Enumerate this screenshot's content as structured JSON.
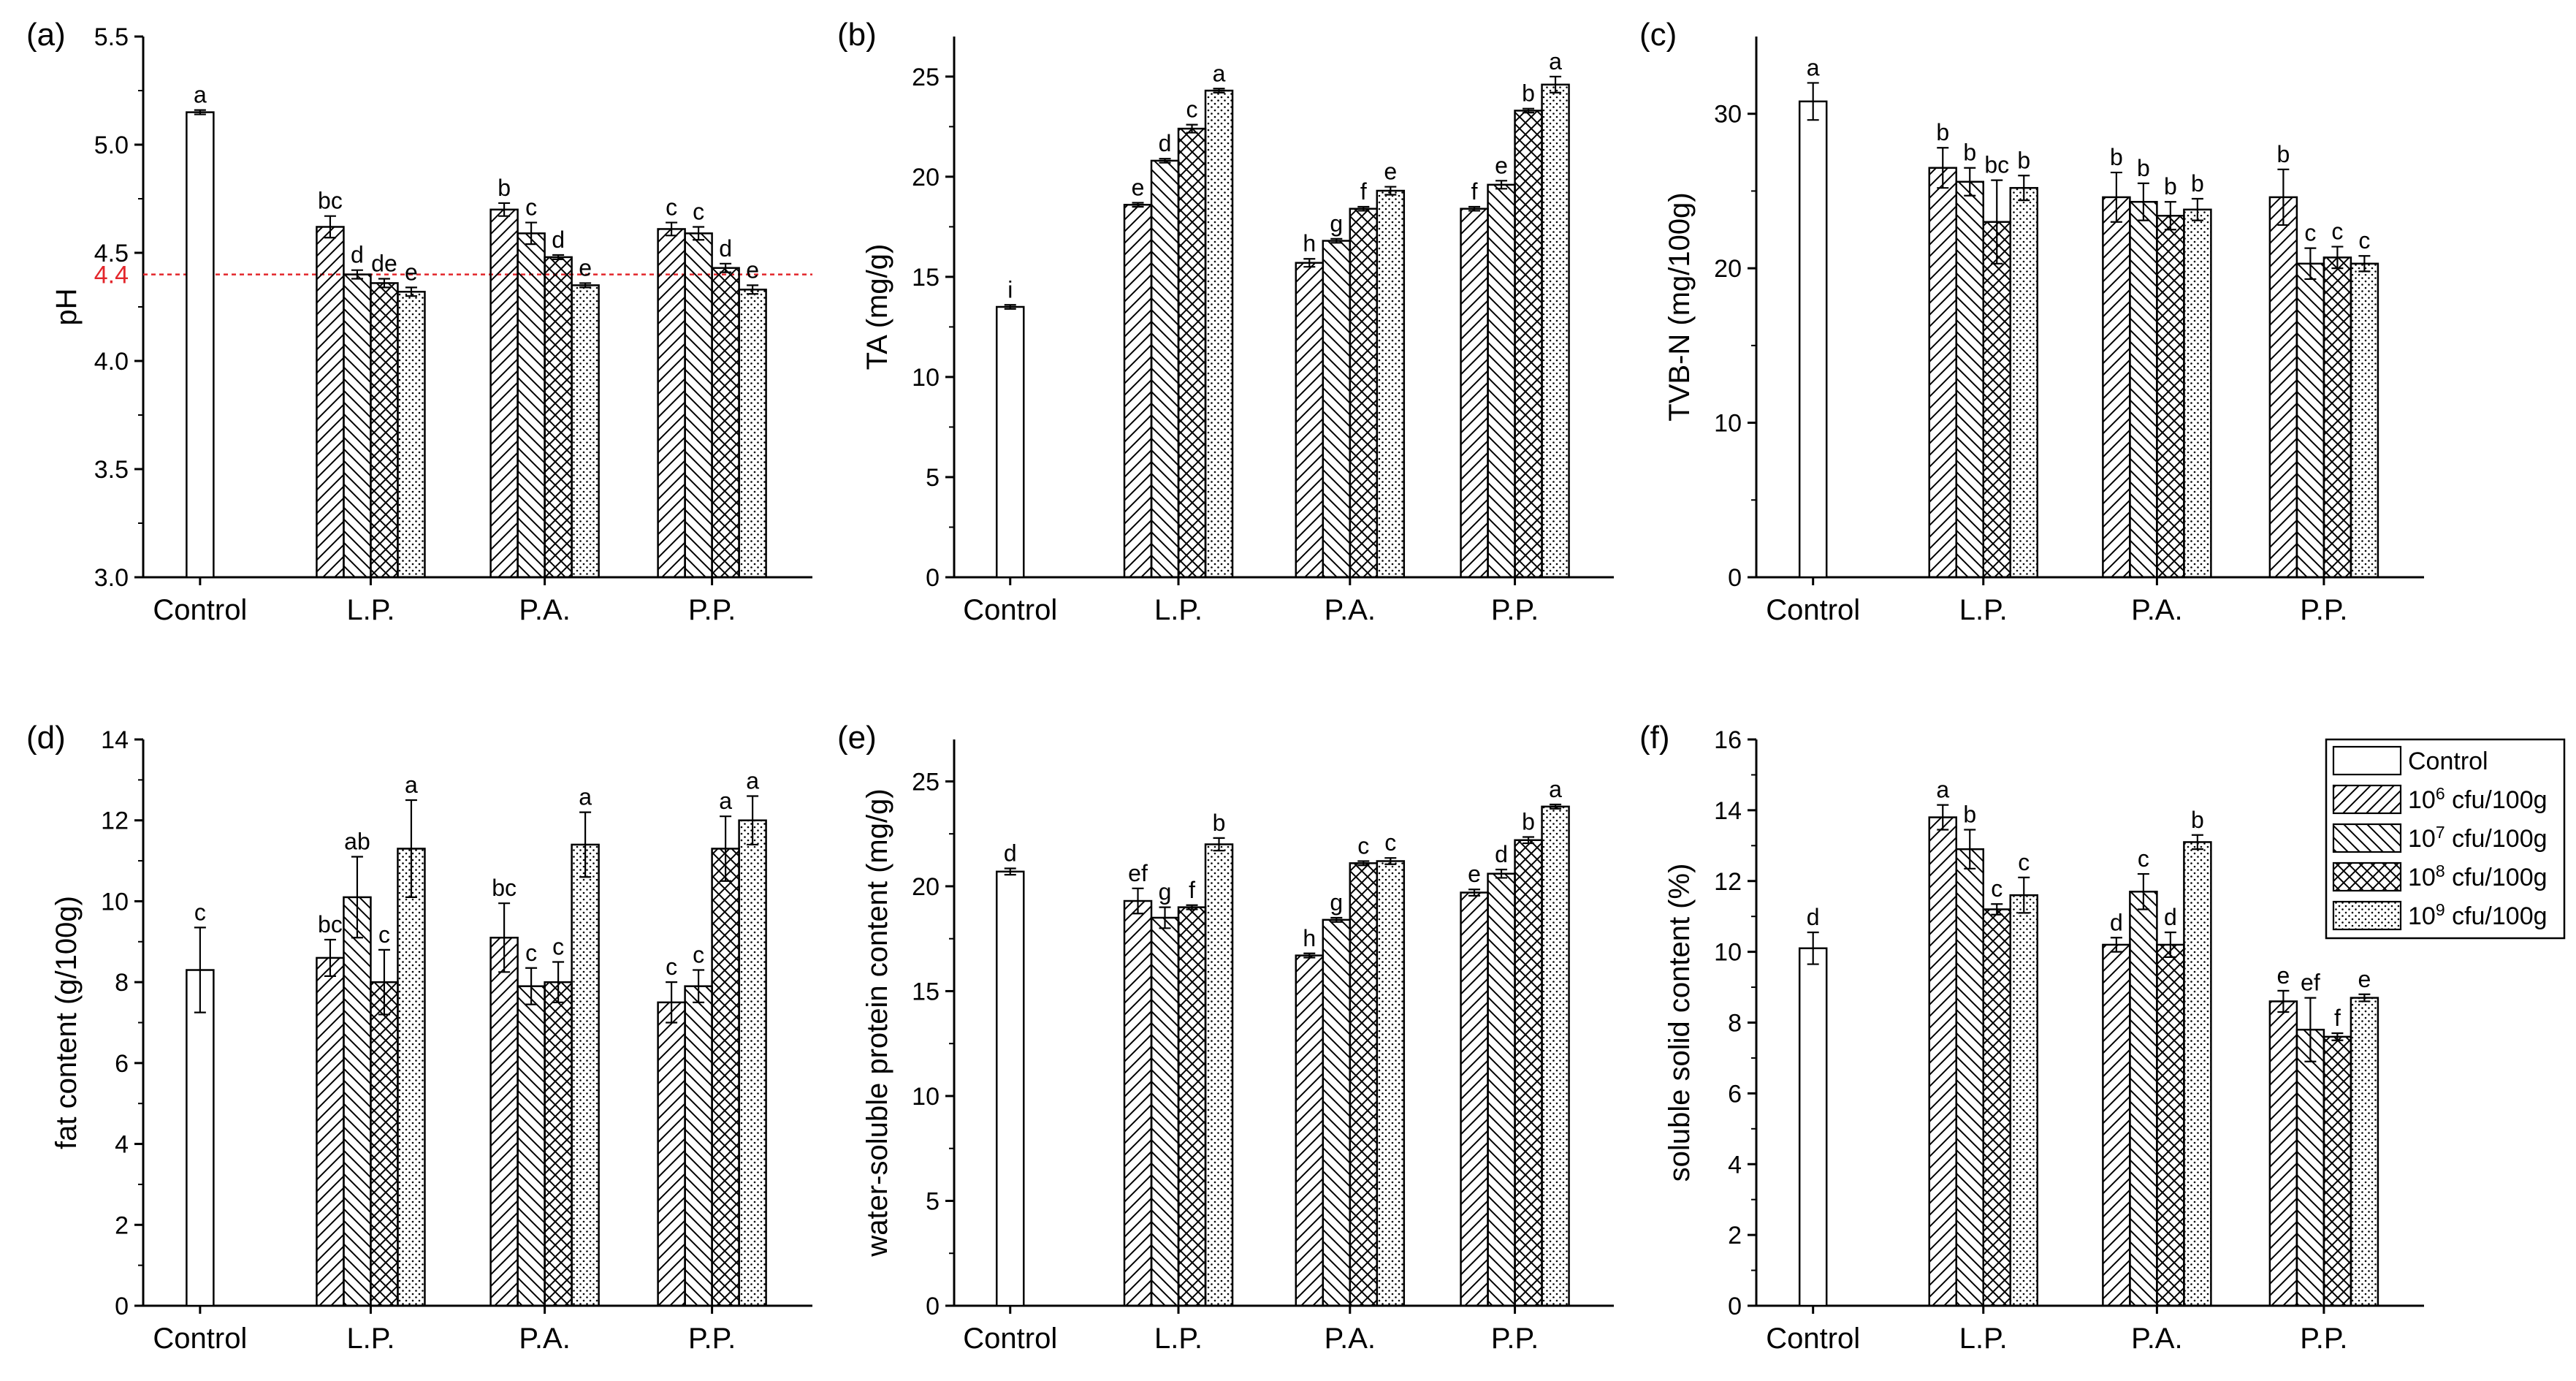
{
  "figure": {
    "groups": [
      "Control",
      "L.P.",
      "P.A.",
      "P.P."
    ],
    "legend": {
      "entries": [
        {
          "label": "Control",
          "pattern": "none"
        },
        {
          "label_base": "10",
          "label_exp": "6",
          "label_unit": " cfu/100g",
          "pattern": "diag-right"
        },
        {
          "label_base": "10",
          "label_exp": "7",
          "label_unit": " cfu/100g",
          "pattern": "diag-left"
        },
        {
          "label_base": "10",
          "label_exp": "8",
          "label_unit": " cfu/100g",
          "pattern": "crosshatch"
        },
        {
          "label_base": "10",
          "label_exp": "9",
          "label_unit": " cfu/100g",
          "pattern": "dots"
        }
      ]
    }
  },
  "chart_data": [
    {
      "panel": "(a)",
      "type": "bar",
      "ylabel": "pH",
      "ylim": [
        3.0,
        5.5
      ],
      "yticks": [
        3.0,
        3.5,
        4.0,
        4.5,
        5.0,
        5.5
      ],
      "ytick_decimals": 1,
      "reference_line": {
        "value": 4.4,
        "label": "4.4",
        "color": "#e3262b"
      },
      "control": {
        "value": 5.15,
        "error": 0.01,
        "letter": "a"
      },
      "series": [
        {
          "group": "L.P.",
          "values": [
            4.62,
            4.4,
            4.36,
            4.32
          ],
          "errors": [
            0.05,
            0.02,
            0.02,
            0.02
          ],
          "letters": [
            "bc",
            "d",
            "de",
            "e"
          ]
        },
        {
          "group": "P.A.",
          "values": [
            4.7,
            4.59,
            4.48,
            4.35
          ],
          "errors": [
            0.03,
            0.05,
            0.01,
            0.01
          ],
          "letters": [
            "b",
            "c",
            "d",
            "e"
          ]
        },
        {
          "group": "P.P.",
          "values": [
            4.61,
            4.59,
            4.43,
            4.33
          ],
          "errors": [
            0.03,
            0.03,
            0.02,
            0.02
          ],
          "letters": [
            "c",
            "c",
            "d",
            "e"
          ]
        }
      ]
    },
    {
      "panel": "(b)",
      "type": "bar",
      "ylabel": "TA (mg/g)",
      "ylim": [
        0,
        27
      ],
      "yticks": [
        0,
        5,
        10,
        15,
        20,
        25
      ],
      "ytick_decimals": 0,
      "control": {
        "value": 13.5,
        "error": 0.1,
        "letter": "i"
      },
      "series": [
        {
          "group": "L.P.",
          "values": [
            18.6,
            20.8,
            22.4,
            24.3
          ],
          "errors": [
            0.1,
            0.1,
            0.2,
            0.1
          ],
          "letters": [
            "e",
            "d",
            "c",
            "a"
          ]
        },
        {
          "group": "P.A.",
          "values": [
            15.7,
            16.8,
            18.4,
            19.3
          ],
          "errors": [
            0.2,
            0.1,
            0.1,
            0.2
          ],
          "letters": [
            "h",
            "g",
            "f",
            "e"
          ]
        },
        {
          "group": "P.P.",
          "values": [
            18.4,
            19.6,
            23.3,
            24.6
          ],
          "errors": [
            0.1,
            0.2,
            0.1,
            0.4
          ],
          "letters": [
            "f",
            "e",
            "b",
            "a"
          ]
        }
      ]
    },
    {
      "panel": "(c)",
      "type": "bar",
      "ylabel": "TVB-N (mg/100g)",
      "ylim": [
        0,
        35
      ],
      "yticks": [
        0,
        10,
        20,
        30
      ],
      "ytick_decimals": 0,
      "control": {
        "value": 30.8,
        "error": 1.2,
        "letter": "a"
      },
      "series": [
        {
          "group": "L.P.",
          "values": [
            26.5,
            25.6,
            23.0,
            25.2
          ],
          "errors": [
            1.3,
            0.9,
            2.7,
            0.8
          ],
          "letters": [
            "b",
            "b",
            "bc",
            "b"
          ]
        },
        {
          "group": "P.A.",
          "values": [
            24.6,
            24.3,
            23.4,
            23.8
          ],
          "errors": [
            1.6,
            1.2,
            0.9,
            0.7
          ],
          "letters": [
            "b",
            "b",
            "b",
            "b"
          ]
        },
        {
          "group": "P.P.",
          "values": [
            24.6,
            20.3,
            20.7,
            20.3
          ],
          "errors": [
            1.8,
            1.0,
            0.7,
            0.5
          ],
          "letters": [
            "b",
            "c",
            "c",
            "c"
          ]
        }
      ]
    },
    {
      "panel": "(d)",
      "type": "bar",
      "ylabel": "fat content (g/100g)",
      "ylim": [
        0,
        14
      ],
      "yticks": [
        0,
        2,
        4,
        6,
        8,
        10,
        12,
        14
      ],
      "ytick_decimals": 0,
      "control": {
        "value": 8.3,
        "error": 1.05,
        "letter": "c"
      },
      "series": [
        {
          "group": "L.P.",
          "values": [
            8.6,
            10.1,
            8.0,
            11.3
          ],
          "errors": [
            0.45,
            1.0,
            0.8,
            1.2
          ],
          "letters": [
            "bc",
            "ab",
            "c",
            "a"
          ]
        },
        {
          "group": "P.A.",
          "values": [
            9.1,
            7.9,
            8.0,
            11.4
          ],
          "errors": [
            0.85,
            0.45,
            0.5,
            0.8
          ],
          "letters": [
            "bc",
            "c",
            "c",
            "a"
          ]
        },
        {
          "group": "P.P.",
          "values": [
            7.5,
            7.9,
            11.3,
            12.0
          ],
          "errors": [
            0.5,
            0.4,
            0.8,
            0.6
          ],
          "letters": [
            "c",
            "c",
            "a",
            "a"
          ]
        }
      ]
    },
    {
      "panel": "(e)",
      "type": "bar",
      "ylabel": "water-soluble protein content (mg/g)",
      "ylim": [
        0,
        27
      ],
      "yticks": [
        0,
        5,
        10,
        15,
        20,
        25
      ],
      "ytick_decimals": 0,
      "control": {
        "value": 20.7,
        "error": 0.15,
        "letter": "d"
      },
      "series": [
        {
          "group": "L.P.",
          "values": [
            19.3,
            18.5,
            19.0,
            22.0
          ],
          "errors": [
            0.6,
            0.5,
            0.1,
            0.3
          ],
          "letters": [
            "ef",
            "g",
            "f",
            "b"
          ]
        },
        {
          "group": "P.A.",
          "values": [
            16.7,
            18.4,
            21.1,
            21.2
          ],
          "errors": [
            0.1,
            0.1,
            0.1,
            0.15
          ],
          "letters": [
            "h",
            "g",
            "c",
            "c"
          ]
        },
        {
          "group": "P.P.",
          "values": [
            19.7,
            20.6,
            22.2,
            23.8
          ],
          "errors": [
            0.15,
            0.2,
            0.15,
            0.1
          ],
          "letters": [
            "e",
            "d",
            "b",
            "a"
          ]
        }
      ]
    },
    {
      "panel": "(f)",
      "type": "bar",
      "ylabel": "soluble solid content (%)",
      "ylim": [
        0,
        16
      ],
      "yticks": [
        0,
        2,
        4,
        6,
        8,
        10,
        12,
        14,
        16
      ],
      "ytick_decimals": 0,
      "control": {
        "value": 10.1,
        "error": 0.45,
        "letter": "d"
      },
      "series": [
        {
          "group": "L.P.",
          "values": [
            13.8,
            12.9,
            11.2,
            11.6
          ],
          "errors": [
            0.35,
            0.55,
            0.15,
            0.5
          ],
          "letters": [
            "a",
            "b",
            "c",
            "c"
          ]
        },
        {
          "group": "P.A.",
          "values": [
            10.2,
            11.7,
            10.2,
            13.1
          ],
          "errors": [
            0.2,
            0.5,
            0.35,
            0.2
          ],
          "letters": [
            "d",
            "c",
            "d",
            "b"
          ]
        },
        {
          "group": "P.P.",
          "values": [
            8.6,
            7.8,
            7.6,
            8.7
          ],
          "errors": [
            0.3,
            0.9,
            0.1,
            0.1
          ],
          "letters": [
            "e",
            "ef",
            "f",
            "e"
          ]
        }
      ]
    }
  ]
}
